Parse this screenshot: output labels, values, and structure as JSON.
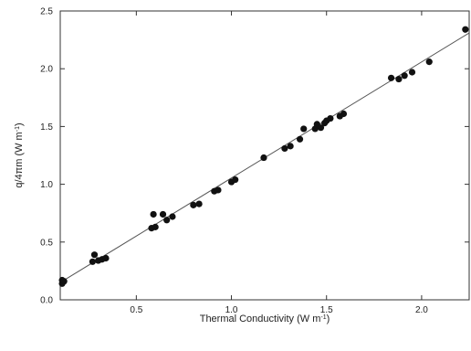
{
  "chart_data": {
    "type": "scatter",
    "xlabel": "Thermal Conductivity (W m",
    "xlabel_sup": "-1",
    "xlabel_close": ")",
    "ylabel": "q/4πm (W m",
    "ylabel_sup": "-1",
    "ylabel_close": ")",
    "xlim": [
      0.1,
      2.25
    ],
    "ylim": [
      0.0,
      2.5
    ],
    "xticks": [
      {
        "value": 0.5,
        "label": "0.5"
      },
      {
        "value": 1.0,
        "label": "1.0"
      },
      {
        "value": 1.5,
        "label": "1.5"
      },
      {
        "value": 2.0,
        "label": "2.0"
      }
    ],
    "yticks": [
      {
        "value": 0.0,
        "label": "0.0"
      },
      {
        "value": 0.5,
        "label": "0.5"
      },
      {
        "value": 1.0,
        "label": "1.0"
      },
      {
        "value": 1.5,
        "label": "1.5"
      },
      {
        "value": 2.0,
        "label": "2.0"
      },
      {
        "value": 2.5,
        "label": "2.5"
      }
    ],
    "grid": false,
    "marker_color": "#111111",
    "line_color": "#555555",
    "fit_line": {
      "x": [
        0.1,
        2.25
      ],
      "y": [
        0.15,
        2.31
      ]
    },
    "points": [
      {
        "x": 0.11,
        "y": 0.14
      },
      {
        "x": 0.11,
        "y": 0.17
      },
      {
        "x": 0.12,
        "y": 0.16
      },
      {
        "x": 0.27,
        "y": 0.33
      },
      {
        "x": 0.28,
        "y": 0.39
      },
      {
        "x": 0.3,
        "y": 0.34
      },
      {
        "x": 0.32,
        "y": 0.35
      },
      {
        "x": 0.34,
        "y": 0.36
      },
      {
        "x": 0.58,
        "y": 0.62
      },
      {
        "x": 0.59,
        "y": 0.74
      },
      {
        "x": 0.6,
        "y": 0.63
      },
      {
        "x": 0.64,
        "y": 0.74
      },
      {
        "x": 0.66,
        "y": 0.69
      },
      {
        "x": 0.69,
        "y": 0.72
      },
      {
        "x": 0.8,
        "y": 0.82
      },
      {
        "x": 0.83,
        "y": 0.83
      },
      {
        "x": 0.91,
        "y": 0.94
      },
      {
        "x": 0.93,
        "y": 0.95
      },
      {
        "x": 1.0,
        "y": 1.02
      },
      {
        "x": 1.02,
        "y": 1.04
      },
      {
        "x": 1.17,
        "y": 1.23
      },
      {
        "x": 1.28,
        "y": 1.31
      },
      {
        "x": 1.31,
        "y": 1.33
      },
      {
        "x": 1.36,
        "y": 1.39
      },
      {
        "x": 1.38,
        "y": 1.48
      },
      {
        "x": 1.44,
        "y": 1.48
      },
      {
        "x": 1.45,
        "y": 1.52
      },
      {
        "x": 1.47,
        "y": 1.49
      },
      {
        "x": 1.49,
        "y": 1.53
      },
      {
        "x": 1.5,
        "y": 1.55
      },
      {
        "x": 1.52,
        "y": 1.57
      },
      {
        "x": 1.57,
        "y": 1.59
      },
      {
        "x": 1.59,
        "y": 1.61
      },
      {
        "x": 1.84,
        "y": 1.92
      },
      {
        "x": 1.88,
        "y": 1.91
      },
      {
        "x": 1.91,
        "y": 1.94
      },
      {
        "x": 1.95,
        "y": 1.97
      },
      {
        "x": 2.04,
        "y": 2.06
      },
      {
        "x": 2.23,
        "y": 2.34
      }
    ]
  }
}
